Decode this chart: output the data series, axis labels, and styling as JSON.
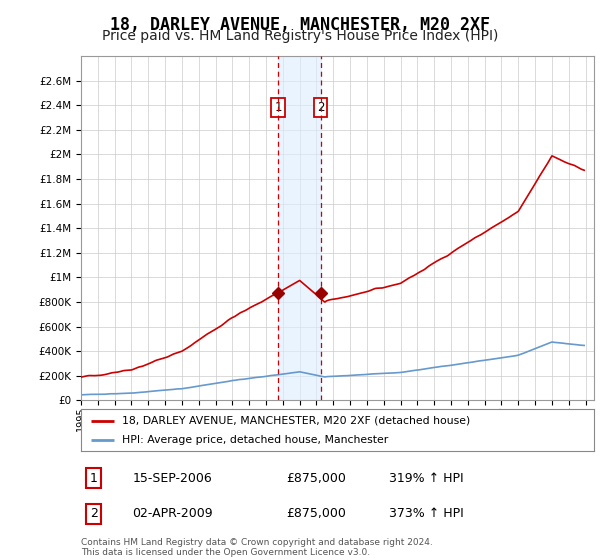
{
  "title": "18, DARLEY AVENUE, MANCHESTER, M20 2XF",
  "subtitle": "Price paid vs. HM Land Registry's House Price Index (HPI)",
  "title_fontsize": 12,
  "subtitle_fontsize": 10,
  "background_color": "#ffffff",
  "plot_bg_color": "#ffffff",
  "grid_color": "#cccccc",
  "ylim": [
    0,
    2800000
  ],
  "yticks": [
    0,
    200000,
    400000,
    600000,
    800000,
    1000000,
    1200000,
    1400000,
    1600000,
    1800000,
    2000000,
    2200000,
    2400000,
    2600000
  ],
  "ytick_labels": [
    "£0",
    "£200K",
    "£400K",
    "£600K",
    "£800K",
    "£1M",
    "£1.2M",
    "£1.4M",
    "£1.6M",
    "£1.8M",
    "£2M",
    "£2.2M",
    "£2.4M",
    "£2.6M"
  ],
  "xlim_start": 1995.0,
  "xlim_end": 2025.5,
  "property_color": "#cc0000",
  "hpi_color": "#6699cc",
  "marker_color": "#990000",
  "vline_color": "#cc0000",
  "shade_color": "#ddeeff",
  "transaction1_x": 2006.708,
  "transaction1_y": 875000,
  "transaction2_x": 2009.25,
  "transaction2_y": 875000,
  "legend_property_label": "18, DARLEY AVENUE, MANCHESTER, M20 2XF (detached house)",
  "legend_hpi_label": "HPI: Average price, detached house, Manchester",
  "table_row1": [
    "1",
    "15-SEP-2006",
    "£875,000",
    "319% ↑ HPI"
  ],
  "table_row2": [
    "2",
    "02-APR-2009",
    "£875,000",
    "373% ↑ HPI"
  ],
  "footer": "Contains HM Land Registry data © Crown copyright and database right 2024.\nThis data is licensed under the Open Government Licence v3.0."
}
